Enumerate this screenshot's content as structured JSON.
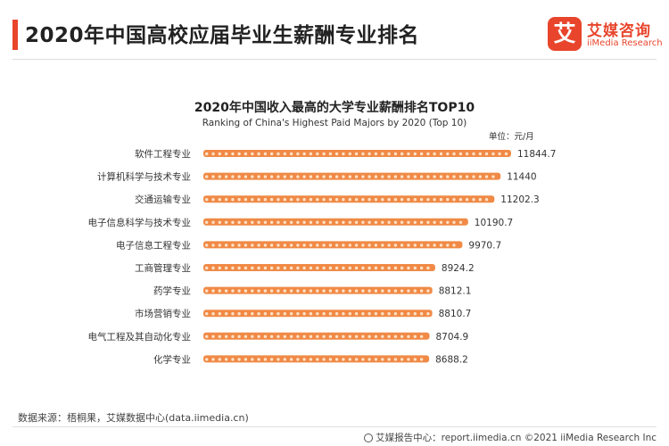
{
  "header": {
    "title": "2020年中国高校应届毕业生薪酬专业排名"
  },
  "logo": {
    "mark": "艾",
    "name_cn": "艾媒咨询",
    "name_en": "iiMedia Research"
  },
  "chart_data": {
    "type": "bar",
    "orientation": "horizontal",
    "title": "2020年中国收入最高的大学专业薪酬排名TOP10",
    "subtitle": "Ranking of China's Highest Paid Majors by 2020 (Top 10)",
    "unit": "单位：元/月",
    "categories": [
      "软件工程专业",
      "计算机科学与技术专业",
      "交通运输专业",
      "电子信息科学与技术专业",
      "电子信息工程专业",
      "工商管理专业",
      "药学专业",
      "市场营销专业",
      "电气工程及其自动化专业",
      "化学专业"
    ],
    "values": [
      11844.7,
      11440,
      11202.3,
      10190.7,
      9970.7,
      8924.2,
      8812.1,
      8810.7,
      8704.9,
      8688.2
    ],
    "value_labels": [
      "11844.7",
      "11440",
      "11202.3",
      "10190.7",
      "9970.7",
      "8924.2",
      "8812.1",
      "8810.7",
      "8704.9",
      "8688.2"
    ],
    "xlim": [
      0,
      11844.7
    ],
    "grid": false,
    "legend": "none",
    "bar_color": "#f08a46"
  },
  "footer": {
    "source": "数据来源：梧桐果，艾媒数据中心(data.iimedia.cn)",
    "right": "艾媒报告中心：report.iimedia.cn   ©2021  iiMedia Research  Inc"
  }
}
